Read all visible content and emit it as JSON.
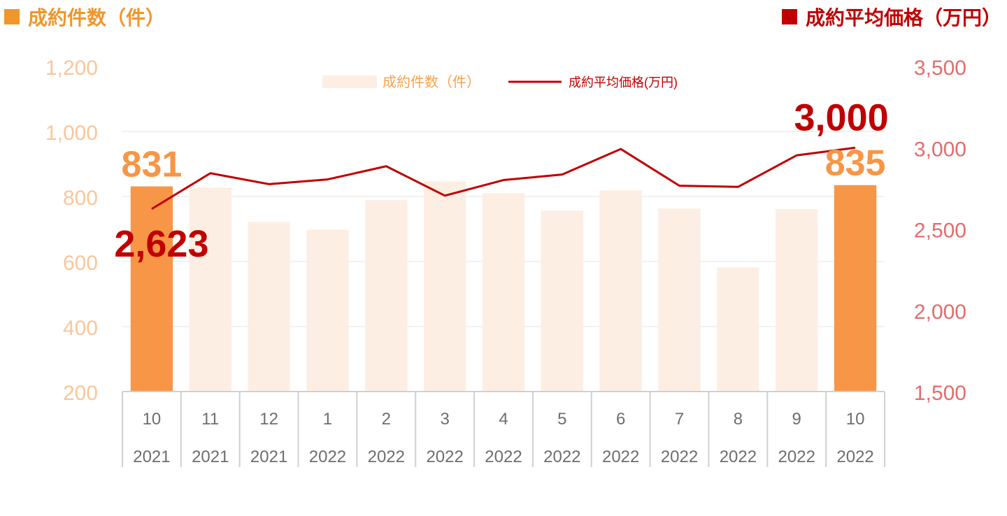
{
  "headings": {
    "left": "成約件数（件）",
    "right": "成約平均価格（万円）"
  },
  "colors": {
    "orange": "#F79646",
    "orange_text": "#F7A24B",
    "orange_dark": "#F0962D",
    "bar_faded": "#FDEEE3",
    "red": "#C00000",
    "red_axis": "#E46C6C",
    "grid": "#E6E6E6",
    "xgrid": "#D0D0D0",
    "xtext": "#6E6E6E"
  },
  "chart_data": {
    "type": "bar",
    "categories": [
      "10",
      "11",
      "12",
      "1",
      "2",
      "3",
      "4",
      "5",
      "6",
      "7",
      "8",
      "9",
      "10"
    ],
    "years": [
      "2021",
      "2021",
      "2021",
      "2022",
      "2022",
      "2022",
      "2022",
      "2022",
      "2022",
      "2022",
      "2022",
      "2022",
      "2022"
    ],
    "series": [
      {
        "name": "成約件数（件）",
        "type": "bar",
        "axis": "left",
        "values": [
          831,
          827,
          722,
          698,
          789,
          847,
          810,
          757,
          819,
          763,
          582,
          761,
          835
        ],
        "highlighted": [
          0,
          12
        ]
      },
      {
        "name": "成約平均価格(万円)",
        "type": "line",
        "axis": "right",
        "values": [
          2623,
          2843,
          2776,
          2805,
          2886,
          2705,
          2801,
          2835,
          2992,
          2766,
          2759,
          2953,
          3000
        ]
      }
    ],
    "y_left": {
      "min": 200,
      "max": 1200,
      "ticks": [
        200,
        400,
        600,
        800,
        1000,
        1200
      ],
      "tick_labels": [
        "200",
        "400",
        "600",
        "800",
        "1,000",
        "1,200"
      ]
    },
    "y_right": {
      "min": 1500,
      "max": 3500,
      "ticks": [
        1500,
        2000,
        2500,
        3000,
        3500
      ],
      "tick_labels": [
        "1,500",
        "2,000",
        "2,500",
        "3,000",
        "3,500"
      ]
    },
    "annotations": [
      {
        "series": 0,
        "index": 0,
        "text": "831"
      },
      {
        "series": 0,
        "index": 12,
        "text": "835"
      },
      {
        "series": 1,
        "index": 0,
        "text": "2,623"
      },
      {
        "series": 1,
        "index": 12,
        "text": "3,000"
      }
    ],
    "legend": {
      "placement": "top-center",
      "items": [
        "成約件数（件）",
        "成約平均価格(万円)"
      ]
    },
    "grid": true
  }
}
